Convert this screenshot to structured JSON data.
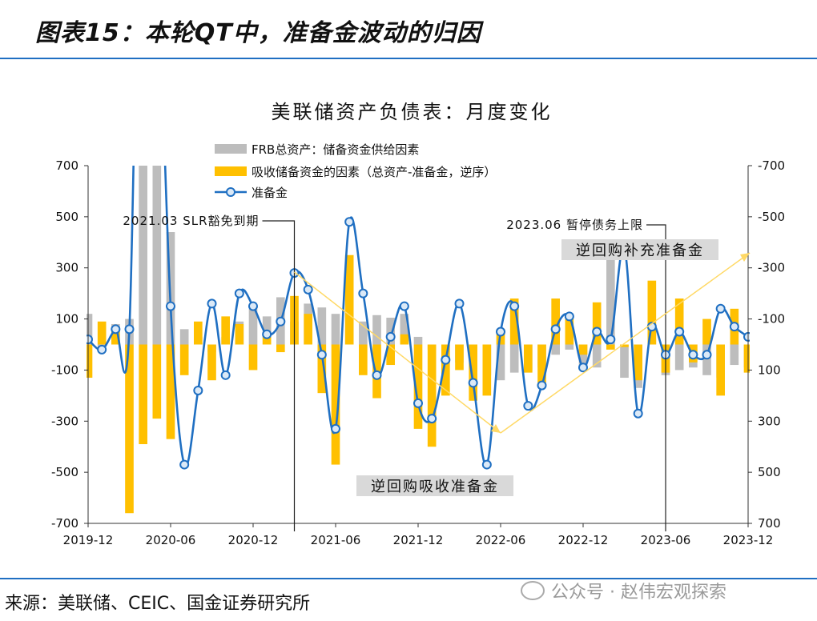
{
  "header": {
    "title": "图表15：本轮QT中，准备金波动的归因"
  },
  "footer": {
    "source": "来源：美联储、CEIC、国金证券研究所",
    "watermark": "公众号 · 赵伟宏观探索"
  },
  "colors": {
    "gray": "#bdbdbd",
    "orange": "#ffc000",
    "blue": "#1f6fc2",
    "arrow": "#ffd966"
  },
  "chart_data": {
    "type": "bar",
    "title": "美联储资产负债表：月度变化",
    "categories": [
      "2019-12",
      "2020-01",
      "2020-02",
      "2020-03",
      "2020-04",
      "2020-05",
      "2020-06",
      "2020-07",
      "2020-08",
      "2020-09",
      "2020-10",
      "2020-11",
      "2020-12",
      "2021-01",
      "2021-02",
      "2021-03",
      "2021-04",
      "2021-05",
      "2021-06",
      "2021-07",
      "2021-08",
      "2021-09",
      "2021-10",
      "2021-11",
      "2021-12",
      "2022-01",
      "2022-02",
      "2022-03",
      "2022-04",
      "2022-05",
      "2022-06",
      "2022-07",
      "2022-08",
      "2022-09",
      "2022-10",
      "2022-11",
      "2022-12",
      "2023-01",
      "2023-02",
      "2023-03",
      "2023-04",
      "2023-05",
      "2023-06",
      "2023-07",
      "2023-08",
      "2023-09",
      "2023-10",
      "2023-11",
      "2023-12"
    ],
    "x_tick_labels": [
      "2019-12",
      "2020-06",
      "2020-12",
      "2021-06",
      "2021-12",
      "2022-06",
      "2022-12",
      "2023-06",
      "2023-12"
    ],
    "y_left": {
      "min": -700,
      "max": 700,
      "ticks": [
        700,
        500,
        300,
        100,
        -100,
        -300,
        -500,
        -700
      ]
    },
    "y_right": {
      "inverted": true,
      "ticks": [
        "-700",
        "-500",
        "-300",
        "-100",
        "100",
        "300",
        "500",
        "700"
      ]
    },
    "series": [
      {
        "name": "FRB总资产：储备资金供给因素",
        "kind": "bar",
        "values": [
          120,
          -20,
          80,
          100,
          2300,
          1500,
          440,
          60,
          30,
          -30,
          30,
          90,
          140,
          110,
          185,
          90,
          160,
          145,
          120,
          125,
          90,
          115,
          105,
          120,
          30,
          -20,
          -30,
          -70,
          -30,
          -120,
          -140,
          -110,
          -100,
          -90,
          -40,
          -20,
          -100,
          -90,
          390,
          -130,
          -170,
          20,
          -120,
          -100,
          -90,
          -120,
          -130,
          -80,
          -90
        ]
      },
      {
        "name": "吸收储备资金的因素（总资产-准备金，逆序）",
        "kind": "bar",
        "values": [
          -130,
          90,
          70,
          -660,
          -390,
          -290,
          -370,
          -120,
          90,
          -140,
          110,
          80,
          -100,
          40,
          -30,
          190,
          120,
          -190,
          -470,
          350,
          -120,
          -210,
          -80,
          40,
          -330,
          -400,
          -200,
          -100,
          -220,
          -200,
          60,
          180,
          -110,
          -150,
          180,
          100,
          -40,
          165,
          -20,
          -10,
          -140,
          250,
          -110,
          180,
          -70,
          100,
          -200,
          140,
          -110
        ]
      },
      {
        "name": "准备金",
        "kind": "line",
        "values": [
          20,
          -20,
          60,
          60,
          2400,
          1600,
          150,
          -470,
          -180,
          160,
          -120,
          200,
          150,
          40,
          90,
          280,
          215,
          -40,
          -330,
          480,
          200,
          -120,
          30,
          150,
          -230,
          -290,
          -60,
          160,
          -150,
          -470,
          50,
          150,
          -240,
          -160,
          60,
          110,
          -90,
          50,
          20,
          380,
          -270,
          70,
          -40,
          50,
          -40,
          -40,
          140,
          70,
          30
        ]
      }
    ],
    "annotations": [
      {
        "type": "vline",
        "at": "2021-03",
        "label": "2021.03 SLR豁免到期"
      },
      {
        "type": "vline",
        "at": "2023-06",
        "label": "2023.06 暂停债务上限"
      },
      {
        "type": "arrow",
        "from": "2021-03",
        "to": "2022-06",
        "label": "逆回购吸收准备金"
      },
      {
        "type": "arrow",
        "from": "2022-06",
        "to": "2023-12",
        "label": "逆回购补充准备金"
      }
    ]
  }
}
